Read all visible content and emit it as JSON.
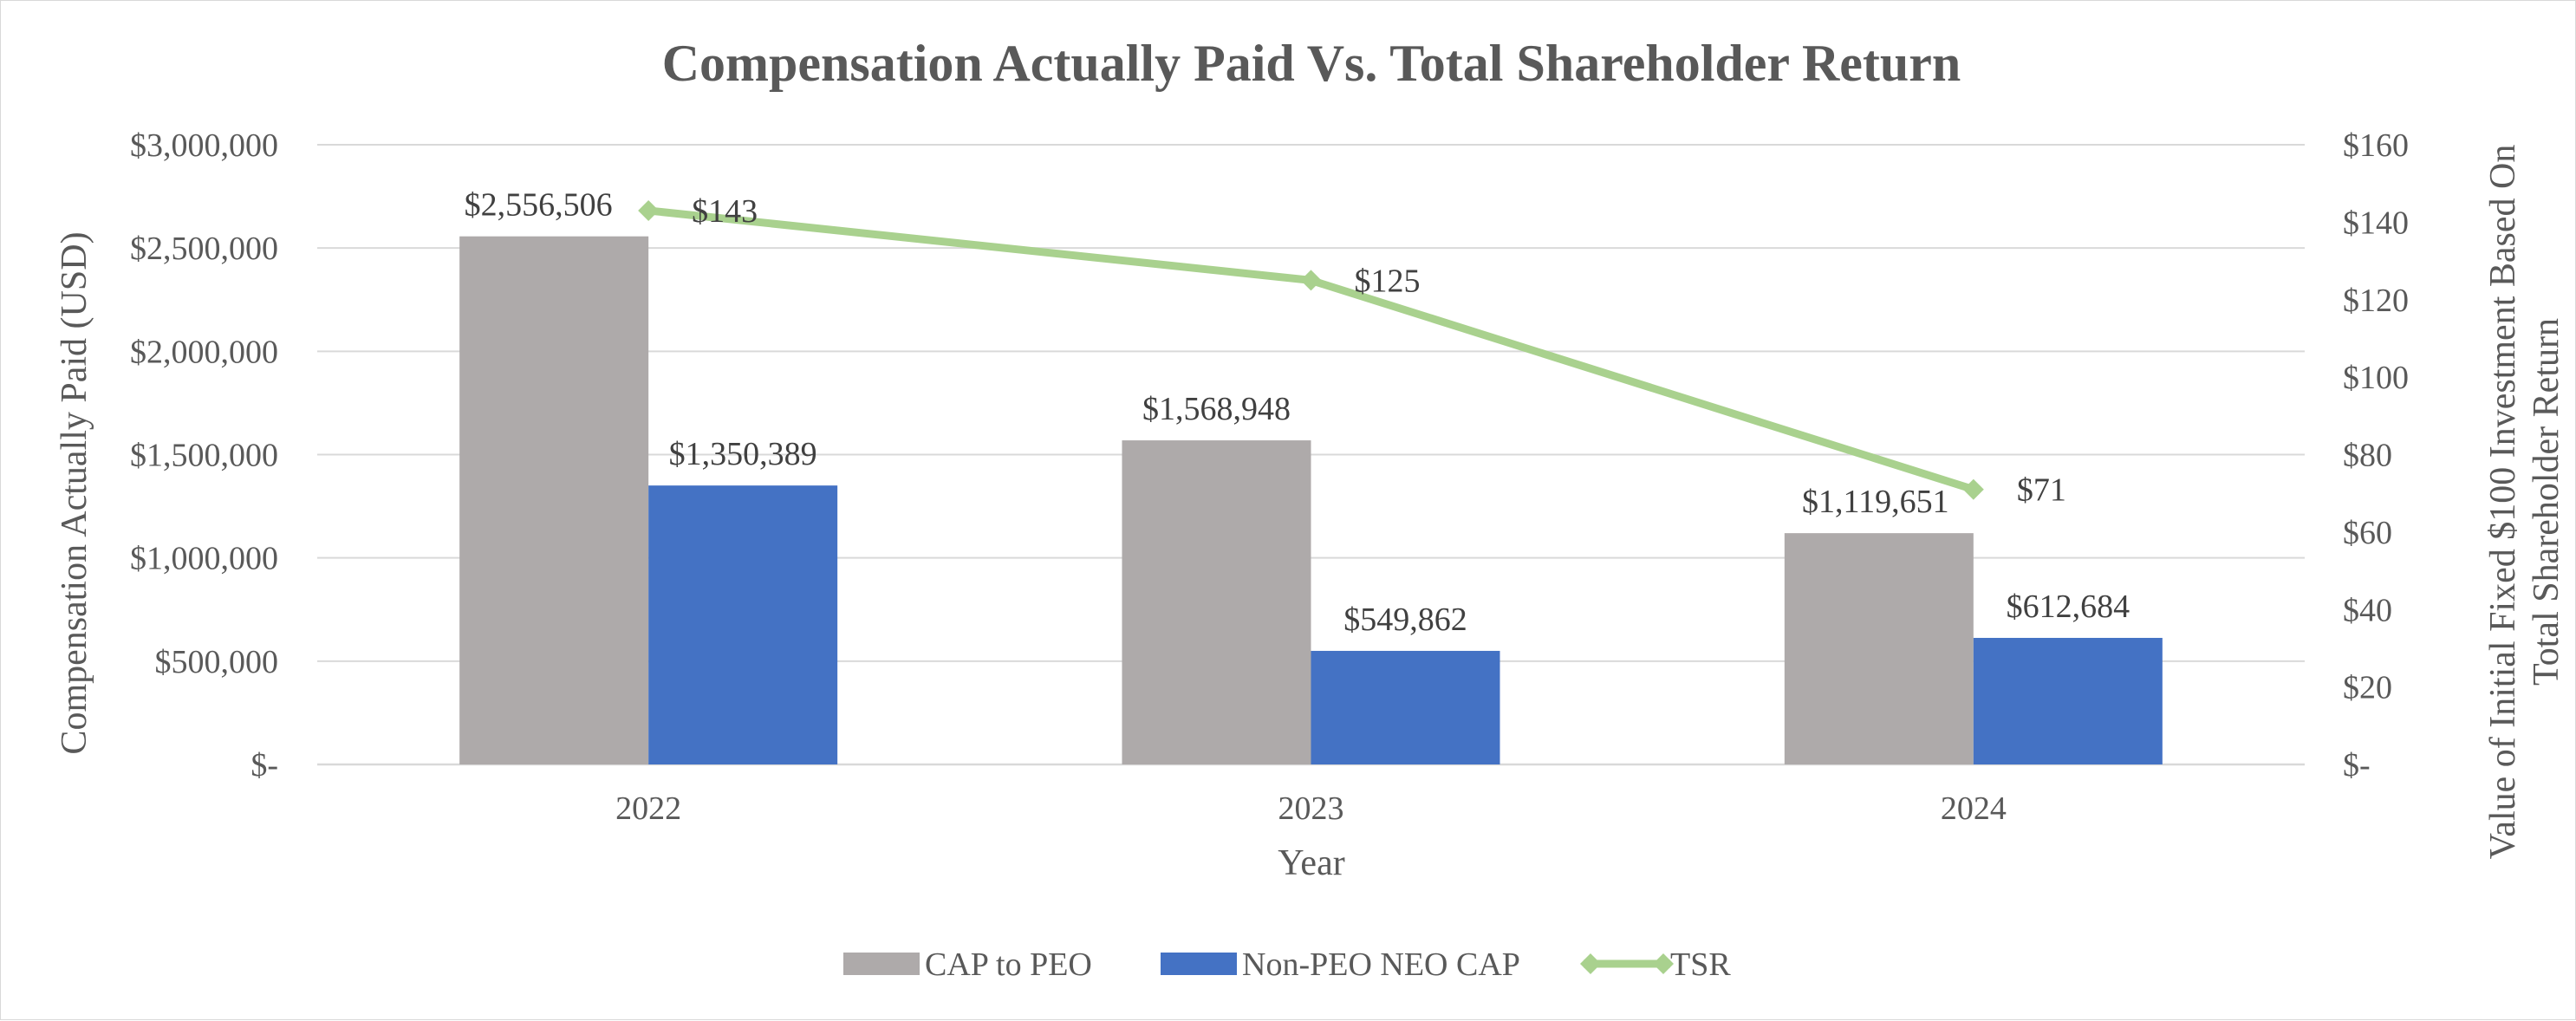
{
  "chart_data": {
    "type": "bar",
    "title": "Compensation Actually Paid Vs. Total Shareholder Return",
    "categories": [
      "2022",
      "2023",
      "2024"
    ],
    "xlabel": "Year",
    "ylabel": "Compensation Actually Paid (USD)",
    "y2label_line1": "Value of Initial Fixed $100 Investment  Based On",
    "y2label_line2": "Total Shareholder  Return",
    "ylim": [
      0,
      3000000
    ],
    "y2lim": [
      0,
      160
    ],
    "yticks": [
      "$-",
      "$500,000",
      "$1,000,000",
      "$1,500,000",
      "$2,000,000",
      "$2,500,000",
      "$3,000,000"
    ],
    "y2ticks": [
      "$-",
      "$20",
      "$40",
      "$60",
      "$80",
      "$100",
      "$120",
      "$140",
      "$160"
    ],
    "grid": true,
    "legend_position": "bottom",
    "series": [
      {
        "name": "CAP to PEO",
        "kind": "bar",
        "axis": "left",
        "color": "#aeaaaa",
        "values": [
          2556506,
          1568948,
          1119651
        ],
        "labels": [
          "$2,556,506",
          "$1,568,948",
          "$1,119,651"
        ]
      },
      {
        "name": "Non-PEO NEO CAP",
        "kind": "bar",
        "axis": "left",
        "color": "#4472c4",
        "values": [
          1350389,
          549862,
          612684
        ],
        "labels": [
          "$1,350,389",
          "$549,862",
          "$612,684"
        ]
      },
      {
        "name": "TSR",
        "kind": "line",
        "axis": "right",
        "color": "#a9d18e",
        "marker": "diamond",
        "values": [
          143,
          125,
          71
        ],
        "labels": [
          "$143",
          "$125",
          "$71"
        ]
      }
    ]
  }
}
